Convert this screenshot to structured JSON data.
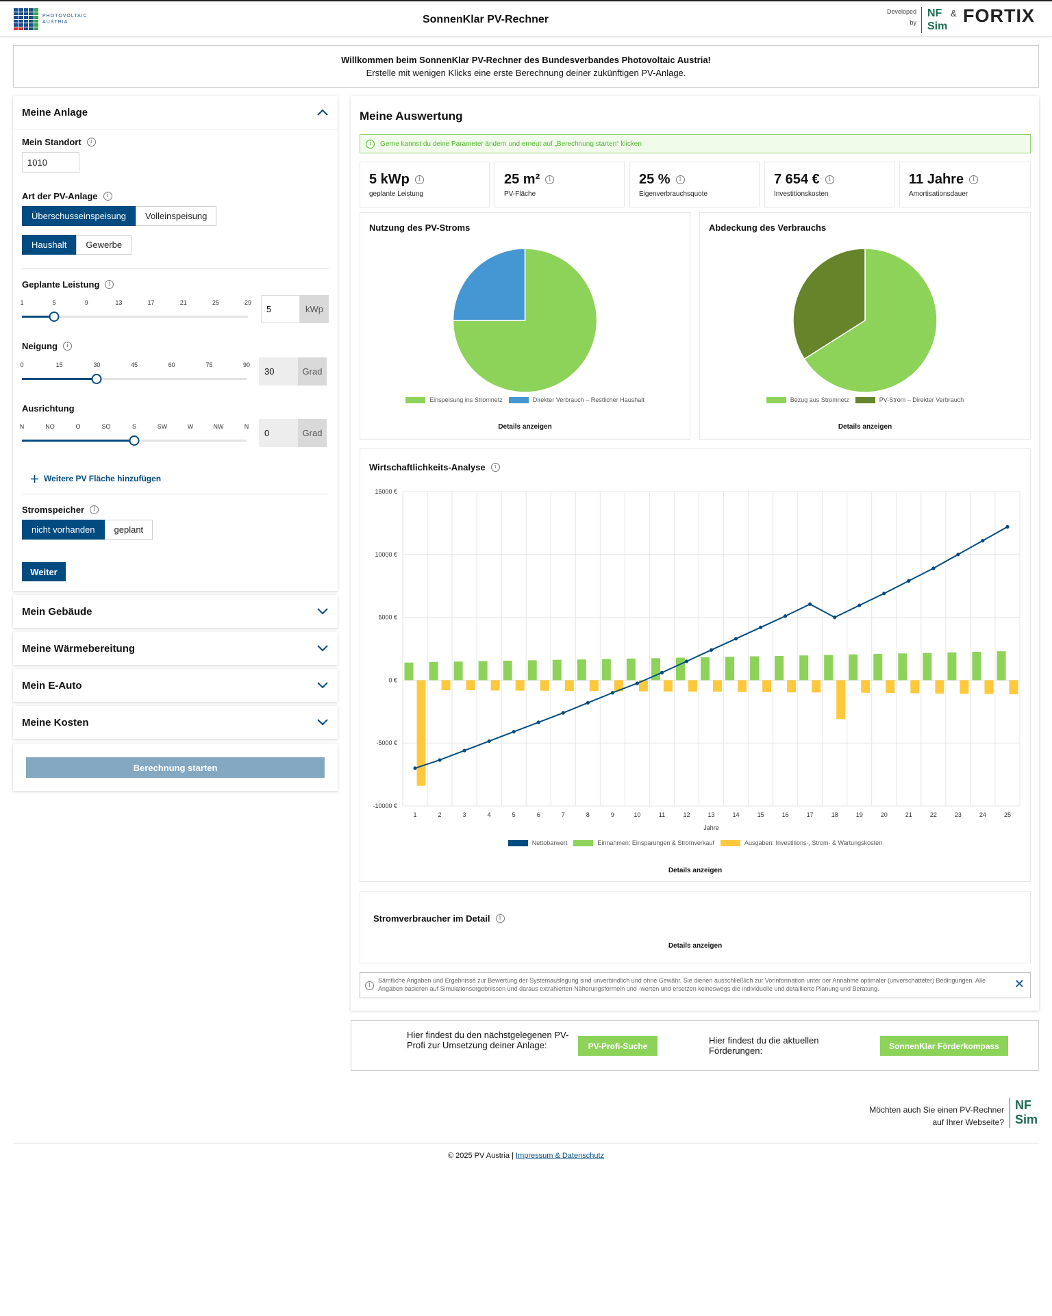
{
  "header": {
    "logo_text_1": "PHOTOVOLTAIC",
    "logo_text_2": "AUSTRIA",
    "title": "SonnenKlar PV-Rechner",
    "developed_1": "Developed",
    "developed_2": "by",
    "nf": "NF",
    "sim": "Sim",
    "amp": "&",
    "fortix": "FORTIX"
  },
  "welcome": {
    "line1": "Willkommen beim SonnenKlar PV-Rechner des Bundesverbandes Photovoltaic Austria!",
    "line2": "Erstelle mit wenigen Klicks eine erste Berechnung deiner zukünftigen PV-Anlage."
  },
  "anlage": {
    "title": "Meine Anlage",
    "standort_label": "Mein Standort",
    "standort_value": "1010",
    "art_label": "Art der PV-Anlage",
    "art_options": [
      "Überschusseinspeisung",
      "Volleinspeisung"
    ],
    "typ_options": [
      "Haushalt",
      "Gewerbe"
    ],
    "leistung_label": "Geplante Leistung",
    "leistung_ticks": [
      "1",
      "5",
      "9",
      "13",
      "17",
      "21",
      "25",
      "29"
    ],
    "leistung_value": "5",
    "leistung_unit": "kWp",
    "leistung_level": 0.143,
    "neigung_label": "Neigung",
    "neigung_ticks": [
      "0",
      "15",
      "30",
      "45",
      "60",
      "75",
      "90"
    ],
    "neigung_value": "30",
    "neigung_unit": "Grad",
    "neigung_level": 0.333,
    "ausrichtung_label": "Ausrichtung",
    "ausrichtung_ticks": [
      "N",
      "NO",
      "O",
      "SO",
      "S",
      "SW",
      "W",
      "NW",
      "N"
    ],
    "ausrichtung_value": "0",
    "ausrichtung_unit": "Grad",
    "ausrichtung_level": 0.5,
    "add_area": "Weitere PV Fläche hinzufügen",
    "speicher_label": "Stromspeicher",
    "speicher_options": [
      "nicht vorhanden",
      "geplant"
    ],
    "weiter": "Weiter"
  },
  "sections": {
    "gebaeude": "Mein Gebäude",
    "waerme": "Meine Wärmebereitung",
    "eauto": "Mein E-Auto",
    "kosten": "Meine Kosten",
    "start": "Berechnung starten"
  },
  "auswertung": {
    "title": "Meine Auswertung",
    "hint": "Gerne kannst du deine Parameter ändern und erneut auf „Berechnung starten“ klicken",
    "kpis": [
      {
        "value": "5 kWp",
        "label": "geplante Leistung"
      },
      {
        "value": "25 m²",
        "label": "PV-Fläche"
      },
      {
        "value": "25 %",
        "label": "Eigenverbrauchsquote"
      },
      {
        "value": "7 654 €",
        "label": "Investitionskosten"
      },
      {
        "value": "11 Jahre",
        "label": "Amortisationsdauer"
      }
    ],
    "pie1_title": "Nutzung des PV-Stroms",
    "pie2_title": "Abdeckung des Verbrauchs",
    "wirtschaft_title": "Wirtschaftlichkeits-Analyse",
    "strom_title": "Stromverbraucher im Detail",
    "details": "Details anzeigen",
    "disclaimer": "Sämtliche Angaben und Ergebnisse zur Bewertung der Systemauslegung sind unverbindlich und ohne Gewähr. Sie dienen ausschließlich zur Vorinformation unter der Annahme optimaler (unverschatteter) Bedingungen. Alle Angaben basieren auf Simulationsergebnissen und daraus extrahierten Näherungsformeln und -werten und ersetzen keineswegs die individuelle und detaillierte Planung und Beratung."
  },
  "profi": {
    "text1": "Hier findest du den nächstgelegenen PV-Profi zur Umsetzung deiner Anlage:",
    "button1": "PV-Profi-Suche",
    "text2": "Hier findest du die aktuellen Förderungen:",
    "button2": "SonnenKlar Förderkompass"
  },
  "promo": {
    "text": "Möchten auch Sie einen PV-Rechner auf Ihrer Webseite?"
  },
  "footer": {
    "copyright": "© 2025 PV Austria |",
    "link": "Impressum & Datenschutz"
  },
  "colors": {
    "primary": "#004b80",
    "green": "#8dd359",
    "darkgreen": "#66842a",
    "blue": "#4497d2",
    "yellow": "#fdc93c"
  },
  "chart_data": [
    {
      "type": "pie",
      "title": "Nutzung des PV-Stroms",
      "labels": [
        "Einspeisung ins Stromnetz",
        "Direkter Verbrauch – Restlicher Haushalt"
      ],
      "values": [
        75,
        25
      ],
      "colors": [
        "#8dd359",
        "#4497d2"
      ]
    },
    {
      "type": "pie",
      "title": "Abdeckung des Verbrauchs",
      "labels": [
        "Bezug aus Stromnetz",
        "PV-Strom – Direkter Verbrauch"
      ],
      "values": [
        66,
        34
      ],
      "colors": [
        "#8dd359",
        "#66842a"
      ]
    },
    {
      "type": "bar+line",
      "title": "Wirtschaftlichkeits-Analyse",
      "xlabel": "Jahre",
      "ylabel": "",
      "ylim": [
        -10000,
        15000
      ],
      "yticks": [
        -10000,
        -5000,
        0,
        5000,
        10000,
        15000
      ],
      "ytick_labels": [
        "-10000 €",
        "-5000 €",
        "0 €",
        "5000 €",
        "10000 €",
        "15000 €"
      ],
      "categories": [
        "1",
        "2",
        "3",
        "4",
        "5",
        "6",
        "7",
        "8",
        "9",
        "10",
        "11",
        "12",
        "13",
        "14",
        "15",
        "16",
        "17",
        "18",
        "19",
        "20",
        "21",
        "22",
        "23",
        "24",
        "25"
      ],
      "series": [
        {
          "name": "Nettobarwert",
          "kind": "line",
          "color": "#004b80",
          "values": [
            -7000,
            -6350,
            -5600,
            -4850,
            -4100,
            -3350,
            -2600,
            -1800,
            -1000,
            -250,
            600,
            1500,
            2400,
            3300,
            4200,
            5100,
            6050,
            5000,
            5950,
            6900,
            7900,
            8900,
            10000,
            11100,
            12200
          ]
        },
        {
          "name": "Einnahmen: Einsparungen & Stromverkauf",
          "kind": "bar",
          "color": "#8dd359",
          "values": [
            1400,
            1450,
            1480,
            1520,
            1550,
            1580,
            1620,
            1650,
            1680,
            1720,
            1750,
            1790,
            1820,
            1860,
            1900,
            1930,
            1970,
            2010,
            2050,
            2090,
            2130,
            2170,
            2210,
            2260,
            2300
          ]
        },
        {
          "name": "Ausgaben: Investitions-, Strom- & Wartungskosten",
          "kind": "bar",
          "color": "#fdc93c",
          "values": [
            -8400,
            -800,
            -800,
            -820,
            -830,
            -840,
            -850,
            -860,
            -880,
            -890,
            -900,
            -910,
            -920,
            -940,
            -950,
            -970,
            -980,
            -3100,
            -1000,
            -1020,
            -1040,
            -1060,
            -1080,
            -1100,
            -1120
          ]
        }
      ]
    }
  ]
}
